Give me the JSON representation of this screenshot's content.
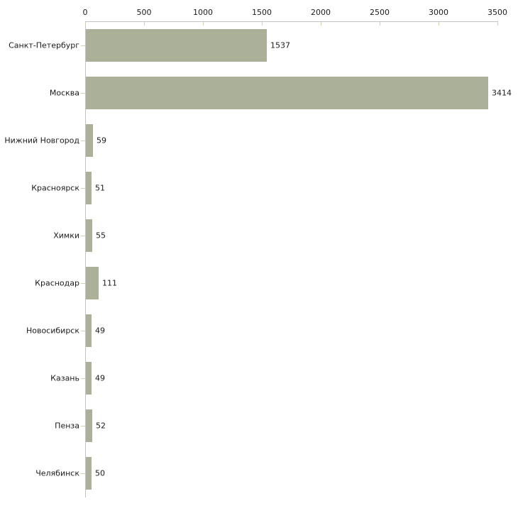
{
  "chart_data": {
    "type": "bar",
    "orientation": "horizontal",
    "title": "",
    "xlabel": "",
    "ylabel": "",
    "categories": [
      "Санкт-Петербург",
      "Москва",
      "Нижний Новгород",
      "Красноярск",
      "Химки",
      "Краснодар",
      "Новосибирск",
      "Казань",
      "Пенза",
      "Челябинск"
    ],
    "values": [
      1537,
      3414,
      59,
      51,
      55,
      111,
      49,
      49,
      52,
      50
    ],
    "value_labels": [
      "1537",
      "3414",
      "59",
      "51",
      "55",
      "111",
      "49",
      "49",
      "52",
      "50"
    ],
    "xlim": [
      0,
      3500
    ],
    "x_ticks": [
      0,
      500,
      1000,
      1500,
      2000,
      2500,
      3000,
      3500
    ],
    "x_tick_labels": [
      "0",
      "500",
      "1000",
      "1500",
      "2000",
      "2500",
      "3000",
      "3500"
    ],
    "axis_position": "top",
    "grid": false,
    "legend": false,
    "colors": {
      "bar": "#abb198",
      "axis_line": "#c2c2c2",
      "tick_mark": "#ccd0ac",
      "text": "#1a1a1a",
      "background": "#ffffff"
    }
  }
}
